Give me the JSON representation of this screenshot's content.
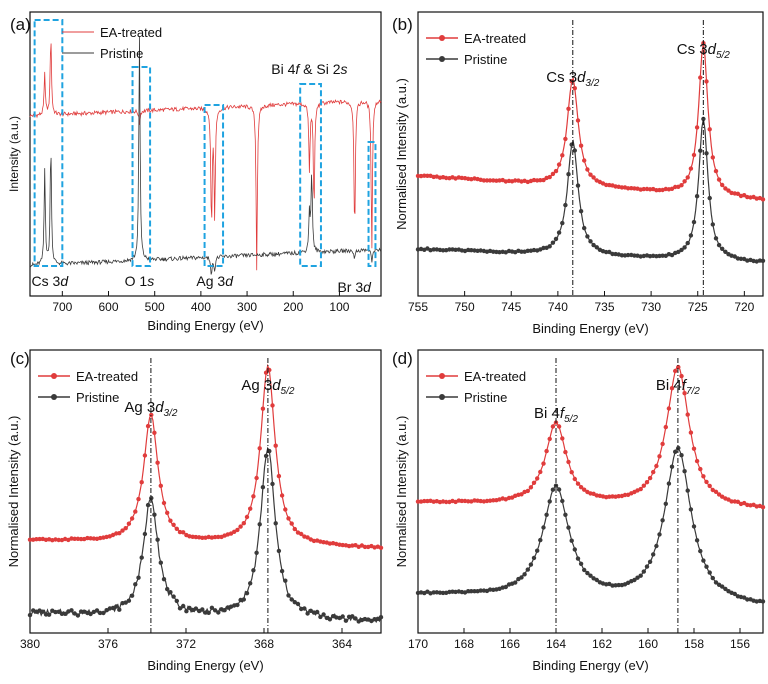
{
  "panels": [
    {
      "id": "a",
      "label": "(a)",
      "type": "line",
      "xlabel": "Binding Energy (eV)",
      "ylabel": "Intensity (a.u.)",
      "xlim": [
        770,
        10
      ],
      "ylim": [
        0,
        1
      ],
      "xticks": [
        700,
        600,
        500,
        400,
        300,
        200,
        100
      ],
      "legend": [
        "EA-treated",
        "Pristine"
      ],
      "annotations": [
        {
          "base": "Cs 3",
          "it": "d",
          "x": 727
        },
        {
          "base": "O 1",
          "it": "s",
          "x": 533
        },
        {
          "base": "Ag 3",
          "it": "d",
          "x": 370
        },
        {
          "base": "Bi 4",
          "it": "f",
          "tail": " & Si 2",
          "it2": "s",
          "x": 165
        },
        {
          "base": "Br 3",
          "it": "d",
          "x": 68
        }
      ],
      "boxes": [
        [
          760,
          700
        ],
        [
          548,
          510
        ],
        [
          392,
          352
        ],
        [
          185,
          140
        ],
        [
          37,
          22
        ]
      ]
    },
    {
      "id": "b",
      "label": "(b)",
      "type": "line",
      "xlabel": "Binding Energy (eV)",
      "ylabel": "Normalised Intensity (a.u.)",
      "xlim": [
        755,
        718
      ],
      "ylim": [
        0,
        1
      ],
      "xticks": [
        755,
        750,
        745,
        740,
        735,
        730,
        725,
        720
      ],
      "legend": [
        "EA-treated",
        "Pristine"
      ],
      "peaks": [
        738.4,
        724.4
      ],
      "peak_labels": [
        {
          "base": "Cs 3",
          "it": "d",
          "sub": "3/2",
          "x": 738.4
        },
        {
          "base": "Cs 3",
          "it": "d",
          "sub": "5/2",
          "x": 724.4
        }
      ]
    },
    {
      "id": "c",
      "label": "(c)",
      "type": "line",
      "xlabel": "Binding Energy (eV)",
      "ylabel": "Normalised Intensity (a.u.)",
      "xlim": [
        380,
        362
      ],
      "ylim": [
        0,
        1
      ],
      "xticks": [
        380,
        376,
        372,
        368,
        364
      ],
      "legend": [
        "EA-treated",
        "Pristine"
      ],
      "peaks": [
        373.8,
        367.8
      ],
      "peak_labels": [
        {
          "base": "Ag 3",
          "it": "d",
          "sub": "3/2",
          "x": 373.8
        },
        {
          "base": "Ag 3",
          "it": "d",
          "sub": "5/2",
          "x": 367.8
        }
      ]
    },
    {
      "id": "d",
      "label": "(d)",
      "type": "line",
      "xlabel": "Binding Energy (eV)",
      "ylabel": "Normalised Intensity (a.u.)",
      "xlim": [
        170,
        155
      ],
      "ylim": [
        0,
        1
      ],
      "xticks": [
        170,
        168,
        166,
        164,
        162,
        160,
        158,
        156
      ],
      "legend": [
        "EA-treated",
        "Pristine"
      ],
      "peaks": [
        164.0,
        158.7
      ],
      "peak_labels": [
        {
          "base": "Bi 4",
          "it": "f",
          "sub": "5/2",
          "x": 164.0
        },
        {
          "base": "Bi 4",
          "it": "f",
          "sub": "7/2",
          "x": 158.7
        }
      ]
    }
  ],
  "chart_data": [
    {
      "type": "line",
      "title": "(a)",
      "xlabel": "Binding Energy (eV)",
      "ylabel": "Intensity (a.u.)",
      "xlim": [
        770,
        10
      ],
      "series": [
        {
          "name": "EA-treated",
          "color": "#e03c3c",
          "baseline": 0.7,
          "peaks": [
            [
              738,
              0.85
            ],
            [
              725,
              1.0
            ],
            [
              533,
              0.65
            ],
            [
              377,
              0.25
            ],
            [
              370,
              0.3
            ],
            [
              279,
              0.1
            ],
            [
              160,
              0.7
            ],
            [
              165,
              0.45
            ],
            [
              155,
              0.3
            ],
            [
              67,
              0.2
            ],
            [
              30,
              0.15
            ]
          ]
        },
        {
          "name": "Pristine",
          "color": "#3a3a3a",
          "baseline": 0.15,
          "peaks": [
            [
              738,
              0.5
            ],
            [
              725,
              0.6
            ],
            [
              533,
              0.98
            ],
            [
              377,
              0.08
            ],
            [
              370,
              0.1
            ],
            [
              160,
              0.45
            ],
            [
              165,
              0.3
            ],
            [
              67,
              0.12
            ],
            [
              30,
              0.1
            ]
          ]
        }
      ]
    },
    {
      "type": "line",
      "title": "(b)",
      "xlabel": "Binding Energy (eV)",
      "ylabel": "Normalised Intensity (a.u.)",
      "xlim": [
        755,
        718
      ],
      "series": [
        {
          "name": "EA-treated",
          "color": "#e03c3c",
          "baseline": 0.42,
          "tail": 0.33,
          "peaks": [
            [
              738.4,
              0.82,
              0.7
            ],
            [
              724.4,
              0.98,
              0.6
            ]
          ]
        },
        {
          "name": "Pristine",
          "color": "#3a3a3a",
          "baseline": 0.15,
          "tail": 0.1,
          "peaks": [
            [
              738.4,
              0.57,
              0.7
            ],
            [
              724.4,
              0.67,
              0.6
            ]
          ]
        }
      ]
    },
    {
      "type": "line",
      "title": "(c)",
      "xlabel": "Binding Energy (eV)",
      "ylabel": "Normalised Intensity (a.u.)",
      "xlim": [
        380,
        362
      ],
      "series": [
        {
          "name": "EA-treated",
          "color": "#e03c3c",
          "baseline": 0.32,
          "tail": 0.29,
          "peaks": [
            [
              373.8,
              0.79,
              0.45
            ],
            [
              367.8,
              0.98,
              0.45
            ]
          ]
        },
        {
          "name": "Pristine",
          "color": "#3a3a3a",
          "baseline": 0.05,
          "tail": 0.02,
          "peaks": [
            [
              373.8,
              0.49,
              0.45
            ],
            [
              367.8,
              0.68,
              0.45
            ]
          ]
        }
      ]
    },
    {
      "type": "line",
      "title": "(d)",
      "xlabel": "Binding Energy (eV)",
      "ylabel": "Normalised Intensity (a.u.)",
      "xlim": [
        170,
        155
      ],
      "series": [
        {
          "name": "EA-treated",
          "color": "#e03c3c",
          "baseline": 0.46,
          "tail": 0.43,
          "peaks": [
            [
              164.0,
              0.76,
              0.55
            ],
            [
              158.7,
              0.98,
              0.6
            ]
          ]
        },
        {
          "name": "Pristine",
          "color": "#3a3a3a",
          "baseline": 0.12,
          "tail": 0.07,
          "peaks": [
            [
              164.0,
              0.53,
              0.7
            ],
            [
              158.7,
              0.69,
              0.7
            ]
          ]
        }
      ]
    }
  ]
}
